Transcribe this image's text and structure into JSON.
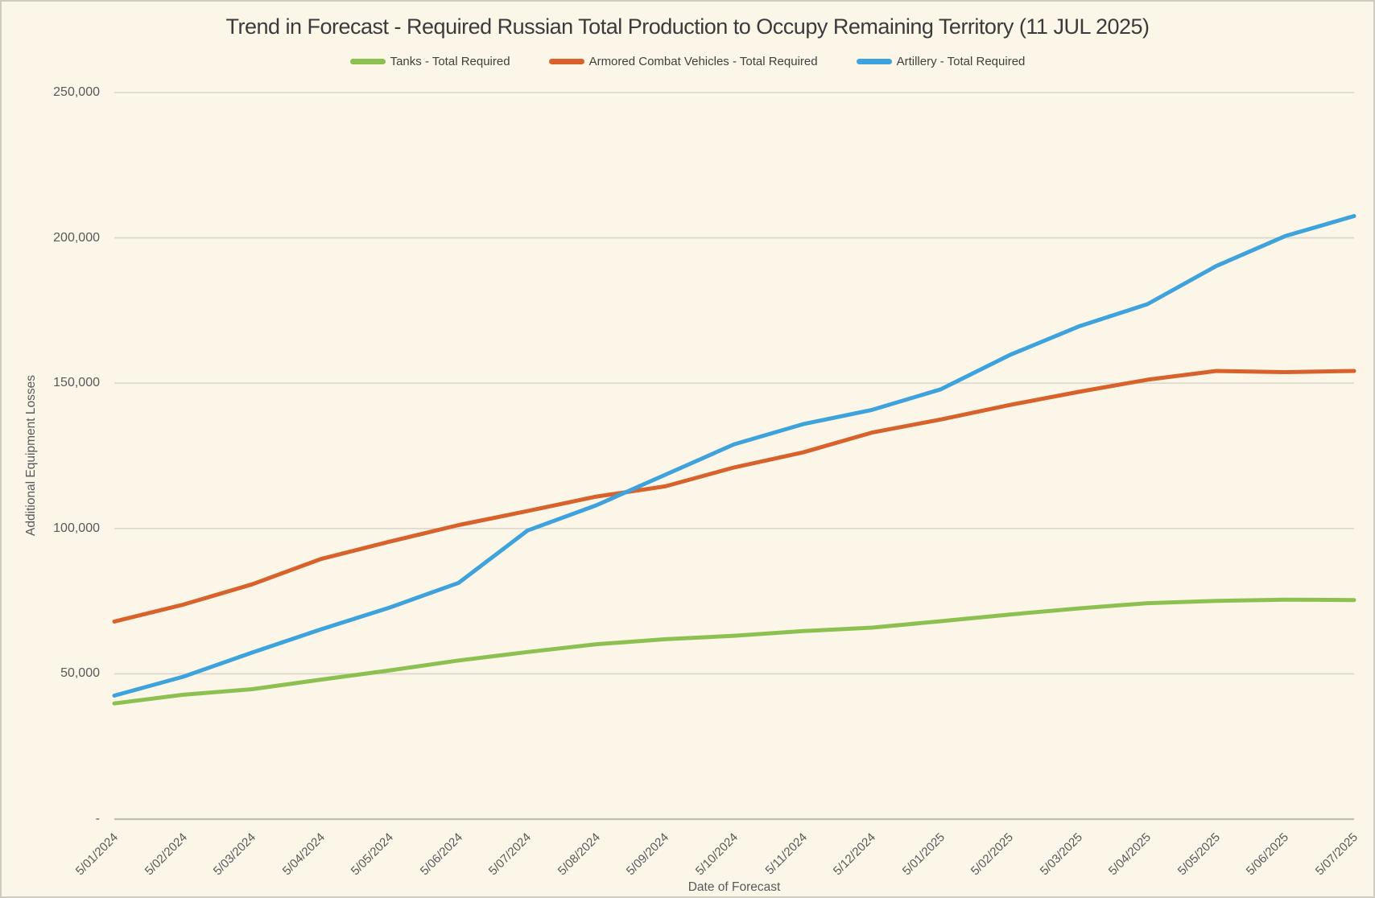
{
  "window": {
    "background": "#FCF6E8",
    "border_color": "#CFCBC0"
  },
  "chart_data": {
    "type": "line",
    "title": "Trend in Forecast - Required Russian Total Production to Occupy Remaining Territory (11 JUL 2025)",
    "xlabel": "Date of Forecast",
    "ylabel": "Additional Equipment Losses",
    "legend_position": "top",
    "grid": true,
    "ylim": [
      0,
      250000
    ],
    "y_ticks": {
      "values": [
        0,
        50000,
        100000,
        150000,
        200000,
        250000
      ],
      "labels": [
        "-",
        "50,000",
        "100,000",
        "150,000",
        "200,000",
        "250,000"
      ]
    },
    "categories": [
      "5/01/2024",
      "5/02/2024",
      "5/03/2024",
      "5/04/2024",
      "5/05/2024",
      "5/06/2024",
      "5/07/2024",
      "5/08/2024",
      "5/09/2024",
      "5/10/2024",
      "5/11/2024",
      "5/12/2024",
      "5/01/2025",
      "5/02/2025",
      "5/03/2025",
      "5/04/2025",
      "5/05/2025",
      "5/06/2025",
      "5/07/2025"
    ],
    "series": [
      {
        "name": "Tanks - Total Required",
        "color": "#8CC152",
        "values": [
          39800,
          42800,
          44700,
          48000,
          51200,
          54600,
          57500,
          60200,
          61900,
          63100,
          64700,
          65900,
          68100,
          70400,
          72500,
          74300,
          75100,
          75500,
          75400
        ]
      },
      {
        "name": "Armored Combat Vehicles - Total Required",
        "color": "#D8622B",
        "values": [
          68000,
          73800,
          80800,
          89500,
          95500,
          101200,
          106000,
          111000,
          114500,
          121000,
          126200,
          133000,
          137500,
          142500,
          147000,
          151200,
          154200,
          153800,
          154200
        ]
      },
      {
        "name": "Artillery - Total Required",
        "color": "#3EA2DC",
        "values": [
          42500,
          49000,
          57300,
          65300,
          72800,
          81300,
          99300,
          108000,
          118500,
          129000,
          135900,
          140800,
          147900,
          159700,
          169500,
          177200,
          190300,
          200600,
          207500
        ]
      }
    ],
    "colors": {
      "grid_line": "#DBD8CE",
      "axis_line": "#BFBCB2",
      "tick_text": "#595959",
      "title_text": "#3B3B3B"
    }
  }
}
